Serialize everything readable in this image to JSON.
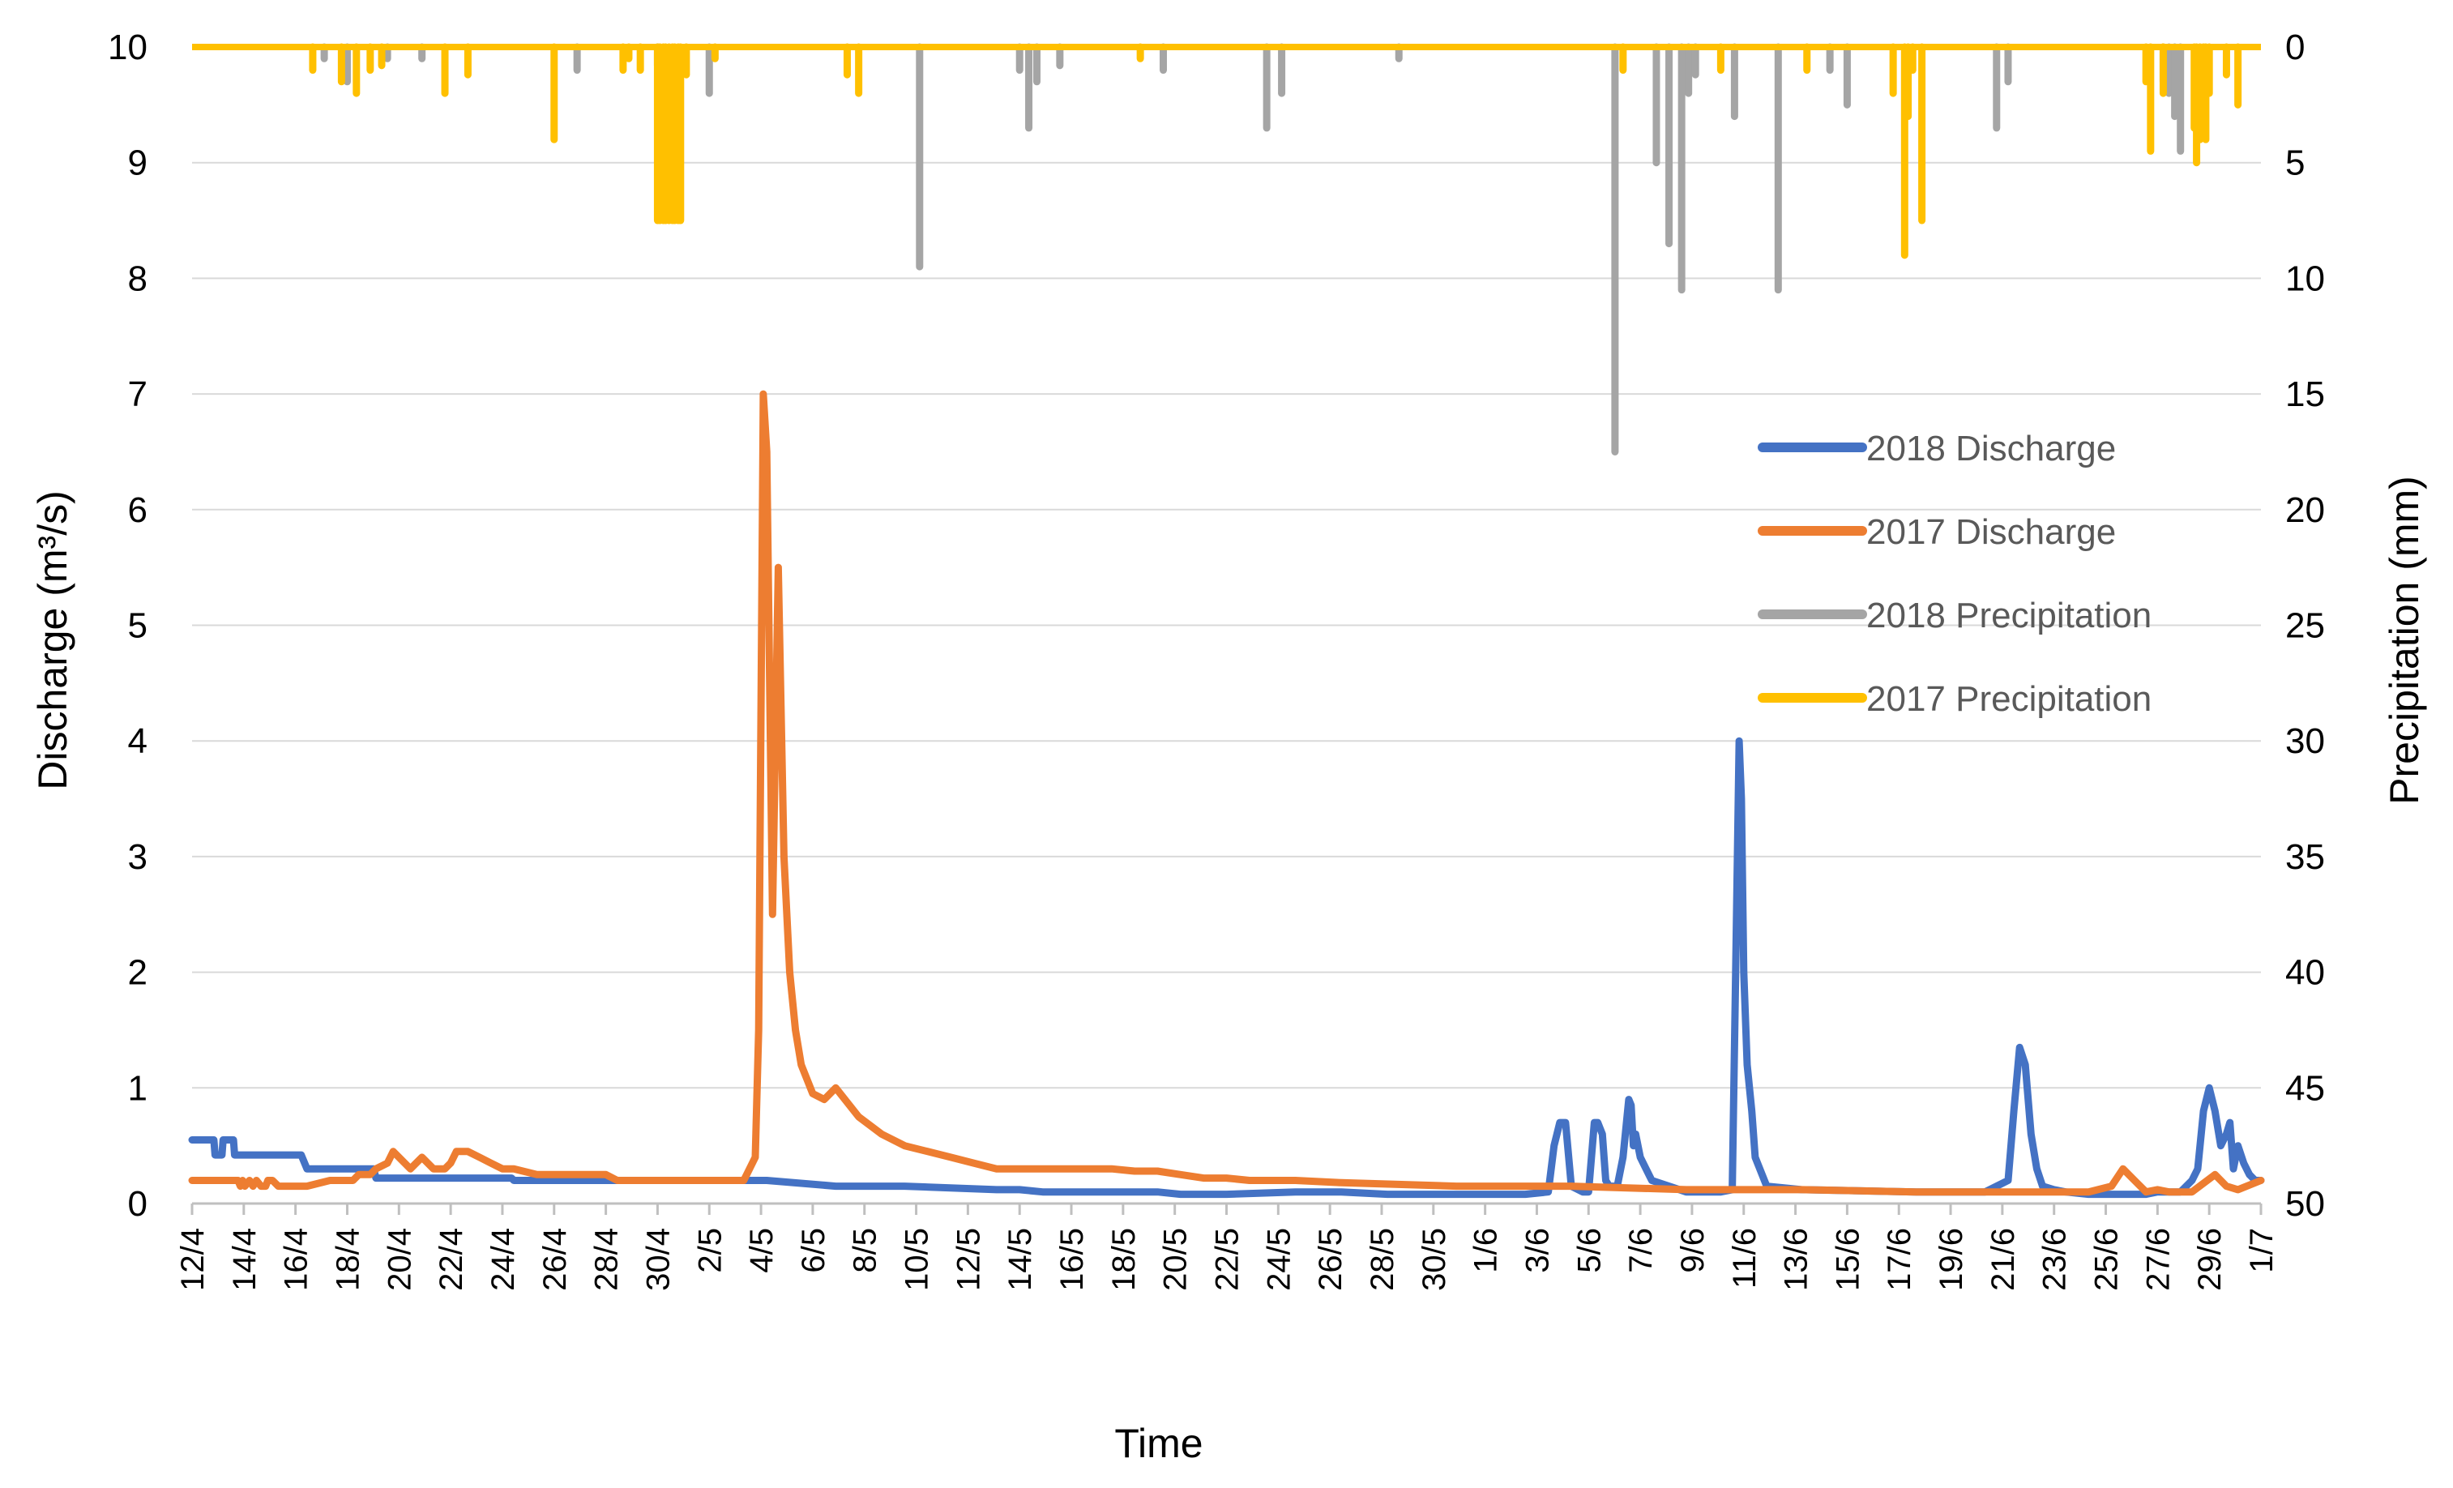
{
  "chart_data": {
    "type": "line",
    "xlabel": "Time",
    "ylabel": "Discharge (m³/s)",
    "y2label": "Precipitation (mm)",
    "ylim": [
      0,
      10
    ],
    "y2lim": [
      0,
      50
    ],
    "y2_inverted": true,
    "grid": true,
    "legend_position": "right",
    "x_tick_labels": [
      "12/4",
      "14/4",
      "16/4",
      "18/4",
      "20/4",
      "22/4",
      "24/4",
      "26/4",
      "28/4",
      "30/4",
      "2/5",
      "4/5",
      "6/5",
      "8/5",
      "10/5",
      "12/5",
      "14/5",
      "16/5",
      "18/5",
      "20/5",
      "22/5",
      "24/5",
      "26/5",
      "28/5",
      "30/5",
      "1/6",
      "3/6",
      "5/6",
      "7/6",
      "9/6",
      "11/6",
      "13/6",
      "15/6",
      "17/6",
      "19/6",
      "21/6",
      "23/6",
      "25/6",
      "27/6",
      "29/6",
      "1/7"
    ],
    "y_ticks": [
      0,
      1,
      2,
      3,
      4,
      5,
      6,
      7,
      8,
      9,
      10
    ],
    "y2_ticks": [
      0,
      5,
      10,
      15,
      20,
      25,
      30,
      35,
      40,
      45,
      50
    ],
    "series": [
      {
        "name": "2018 Discharge",
        "axis": "left",
        "color": "#4472C4",
        "x": [
          0,
          1.9,
          2,
          2.6,
          2.7,
          3.6,
          3.7,
          9.5,
          10,
          15.8,
          16,
          27.8,
          28,
          45,
          48,
          50,
          56,
          59,
          61,
          62,
          70,
          72,
          74,
          79,
          80,
          84,
          86,
          90,
          96,
          100,
          104,
          110,
          112,
          114,
          116,
          118,
          118.5,
          119,
          119.5,
          120,
          121,
          121.5,
          122,
          122.3,
          122.7,
          123,
          123.3,
          124,
          124.5,
          125,
          125.2,
          125.4,
          125.6,
          126,
          126.5,
          127,
          130,
          131,
          132,
          133,
          134,
          134.3,
          134.6,
          134.8,
          135,
          135.3,
          135.7,
          136,
          137,
          140,
          150,
          154,
          156,
          158,
          158.5,
          159,
          159.5,
          160,
          160.5,
          161,
          162,
          163,
          165,
          170,
          171,
          172,
          173,
          174,
          174.5,
          175,
          175.5,
          176,
          176.5,
          177,
          177.3,
          177.6,
          178,
          178.5,
          179,
          179.5,
          180
        ],
        "y": [
          0.55,
          0.55,
          0.42,
          0.42,
          0.55,
          0.55,
          0.42,
          0.42,
          0.3,
          0.3,
          0.22,
          0.22,
          0.2,
          0.2,
          0.2,
          0.2,
          0.15,
          0.15,
          0.15,
          0.15,
          0.12,
          0.12,
          0.1,
          0.1,
          0.1,
          0.1,
          0.08,
          0.08,
          0.1,
          0.1,
          0.08,
          0.08,
          0.08,
          0.08,
          0.08,
          0.1,
          0.5,
          0.7,
          0.7,
          0.15,
          0.1,
          0.1,
          0.7,
          0.7,
          0.6,
          0.2,
          0.15,
          0.15,
          0.4,
          0.9,
          0.85,
          0.5,
          0.6,
          0.4,
          0.3,
          0.2,
          0.1,
          0.1,
          0.1,
          0.1,
          0.12,
          2,
          4,
          3.5,
          2,
          1.2,
          0.8,
          0.4,
          0.15,
          0.12,
          0.1,
          0.1,
          0.1,
          0.2,
          0.8,
          1.35,
          1.2,
          0.6,
          0.3,
          0.15,
          0.12,
          0.1,
          0.08,
          0.08,
          0.1,
          0.1,
          0.1,
          0.2,
          0.3,
          0.8,
          1,
          0.8,
          0.5,
          0.6,
          0.7,
          0.3,
          0.5,
          0.35,
          0.25,
          0.2,
          0.2
        ]
      },
      {
        "name": "2017 Discharge",
        "axis": "left",
        "color": "#ED7D31",
        "x": [
          0,
          4,
          4.2,
          4.4,
          4.6,
          5,
          5.3,
          5.6,
          6,
          6.4,
          6.6,
          7,
          7.5,
          10,
          12,
          14,
          14.5,
          15.5,
          16,
          17,
          17.5,
          18,
          19,
          20,
          21,
          22,
          22.5,
          23,
          24,
          25,
          26,
          27,
          28,
          30,
          36,
          37,
          38,
          40,
          45,
          48,
          48.5,
          49,
          49.3,
          49.7,
          50,
          50.5,
          51,
          51.5,
          52,
          52.5,
          53,
          54,
          55,
          56,
          58,
          60,
          62,
          64,
          66,
          68,
          70,
          80,
          82,
          84,
          86,
          88,
          90,
          92,
          94,
          96,
          100,
          110,
          120,
          130,
          140,
          150,
          160,
          165,
          167,
          168,
          169,
          170,
          171,
          172,
          174,
          176,
          177,
          178,
          180
        ],
        "y": [
          0.2,
          0.2,
          0.15,
          0.2,
          0.15,
          0.2,
          0.15,
          0.2,
          0.15,
          0.15,
          0.2,
          0.2,
          0.15,
          0.15,
          0.2,
          0.2,
          0.25,
          0.25,
          0.3,
          0.35,
          0.45,
          0.4,
          0.3,
          0.4,
          0.3,
          0.3,
          0.35,
          0.45,
          0.45,
          0.4,
          0.35,
          0.3,
          0.3,
          0.25,
          0.25,
          0.2,
          0.2,
          0.2,
          0.2,
          0.2,
          0.3,
          0.4,
          1.5,
          7,
          6.5,
          2.5,
          5.5,
          3,
          2,
          1.5,
          1.2,
          0.95,
          0.9,
          1,
          0.75,
          0.6,
          0.5,
          0.45,
          0.4,
          0.35,
          0.3,
          0.3,
          0.28,
          0.28,
          0.25,
          0.22,
          0.22,
          0.2,
          0.2,
          0.2,
          0.18,
          0.15,
          0.15,
          0.12,
          0.12,
          0.1,
          0.1,
          0.1,
          0.15,
          0.3,
          0.2,
          0.1,
          0.12,
          0.1,
          0.1,
          0.25,
          0.15,
          0.12,
          0.2
        ]
      },
      {
        "name": "2018 Precipitation",
        "axis": "right",
        "color": "#A5A5A5",
        "x": [
          11.5,
          13.5,
          17,
          20,
          33.5,
          40.5,
          45,
          63.3,
          72,
          72.8,
          73.5,
          75.5,
          84.5,
          93.5,
          94.8,
          105,
          123.8,
          127.4,
          128.5,
          129.6,
          130.2,
          130.8,
          134.2,
          138,
          142.5,
          144,
          157,
          158,
          171.5,
          172,
          172.5,
          173
        ],
        "y": [
          0.5,
          1.5,
          0.5,
          0.5,
          1,
          0.8,
          2,
          9.5,
          1,
          3.5,
          1.5,
          0.8,
          1,
          3.5,
          2,
          0.5,
          17.5,
          5,
          8.5,
          10.5,
          2,
          1.2,
          3,
          10.5,
          1,
          2.5,
          3.5,
          1.5,
          1.5,
          2,
          3,
          4.5
        ]
      },
      {
        "name": "2017 Precipitation",
        "axis": "right",
        "color": "#FFC000",
        "x": [
          10.5,
          13,
          14.3,
          15.5,
          16.5,
          22,
          24,
          31.5,
          37.5,
          38,
          39,
          40.5,
          40.7,
          41,
          41.2,
          41.5,
          41.8,
          42,
          42.3,
          42.5,
          43,
          45.5,
          57,
          58,
          82.5,
          124.5,
          133,
          140.5,
          148,
          149,
          149.3,
          149.7,
          150.5,
          170,
          170.4,
          171.5,
          174.2,
          174.4,
          174.7,
          175,
          175.2,
          175.5,
          177,
          178
        ],
        "y": [
          1,
          1.5,
          2,
          1,
          0.8,
          2,
          1.2,
          4,
          1,
          0.5,
          1,
          7.5,
          7.5,
          7.5,
          7.5,
          7.5,
          7.5,
          7.5,
          7.5,
          7.5,
          1.2,
          0.5,
          1.2,
          2,
          0.5,
          1,
          1,
          1,
          2,
          9,
          3,
          1,
          7.5,
          1.5,
          4.5,
          2,
          3.5,
          5,
          4,
          3,
          4,
          2,
          1.2,
          2.5
        ]
      }
    ]
  }
}
